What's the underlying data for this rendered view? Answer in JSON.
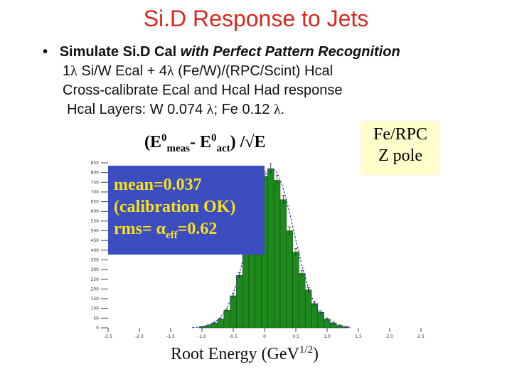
{
  "title": "Si.D Response to Jets",
  "bullets": {
    "bullet_symbol": "•",
    "line1_a": "Simulate Si.D Cal ",
    "line1_b": "with Perfect Pattern Recognition",
    "line2_a": "1",
    "line2_b": " Si/W Ecal + 4",
    "line2_c": " (Fe/W)/(RPC/Scint) Hcal",
    "line3": "Cross-calibrate Ecal and Hcal Had response",
    "line4_a": "Hcal Layers: W  0.074 ",
    "line4_b": "; Fe 0.12 ",
    "line4_c": ".",
    "lambda": "λ"
  },
  "formula": {
    "open": "(E",
    "sup1": "0",
    "sub1": "meas",
    "dash": "- E",
    "sup2": "0",
    "sub2": "act",
    "close": ") /",
    "sqrt": "√",
    "e": "E"
  },
  "tag": {
    "line1": "Fe/RPC",
    "line2": "Z pole"
  },
  "info": {
    "mean": "mean=0.037",
    "calib": "(calibration OK)",
    "rms_a": "rms= ",
    "alpha": "α",
    "rms_sub": "eff",
    "rms_b": "=0.62"
  },
  "xtitle": {
    "base": "Root Energy  (GeV",
    "sup": "1/2",
    "close": ")"
  },
  "colors": {
    "title": "#d8281f",
    "bars": "#1e8a1e",
    "infobox": "#3c4dbf",
    "infotext": "#f5e11e",
    "tag": "#ffffcc",
    "fit": "#3a3ad0"
  },
  "chart_data": {
    "type": "bar",
    "xlim": [
      -2.5,
      2.5
    ],
    "ylim": [
      0,
      850
    ],
    "x_ticks": [
      -2.5,
      -2.0,
      -1.5,
      -1.0,
      -0.5,
      0,
      0.5,
      1.0,
      1.5,
      2.0,
      2.5
    ],
    "x_tick_labels": [
      "-2.5",
      "-2.0",
      "-1.5",
      "-1.0",
      "-0.5",
      "0",
      "0.5",
      "1.0",
      "1.5",
      "2.0",
      "2.5"
    ],
    "y_ticks": [
      0,
      50,
      100,
      150,
      200,
      250,
      300,
      350,
      400,
      450,
      500,
      550,
      600,
      650,
      700,
      750,
      800,
      850
    ],
    "y_tick_labels": [
      "0",
      "50",
      "100",
      "150",
      "200",
      "250",
      "300",
      "350",
      "400",
      "450",
      "500",
      "550",
      "600",
      "650",
      "700",
      "750",
      "800",
      "850"
    ],
    "bin_width": 0.1,
    "x": [
      -1.0,
      -0.9,
      -0.8,
      -0.7,
      -0.6,
      -0.5,
      -0.4,
      -0.3,
      -0.2,
      -0.1,
      0.0,
      0.1,
      0.2,
      0.3,
      0.4,
      0.5,
      0.6,
      0.7,
      0.8,
      0.9,
      1.0,
      1.1,
      1.2,
      1.3
    ],
    "values": [
      5,
      12,
      25,
      45,
      90,
      165,
      270,
      400,
      520,
      680,
      780,
      820,
      760,
      660,
      500,
      390,
      280,
      195,
      125,
      80,
      45,
      25,
      12,
      5
    ],
    "fit_curve": true
  }
}
